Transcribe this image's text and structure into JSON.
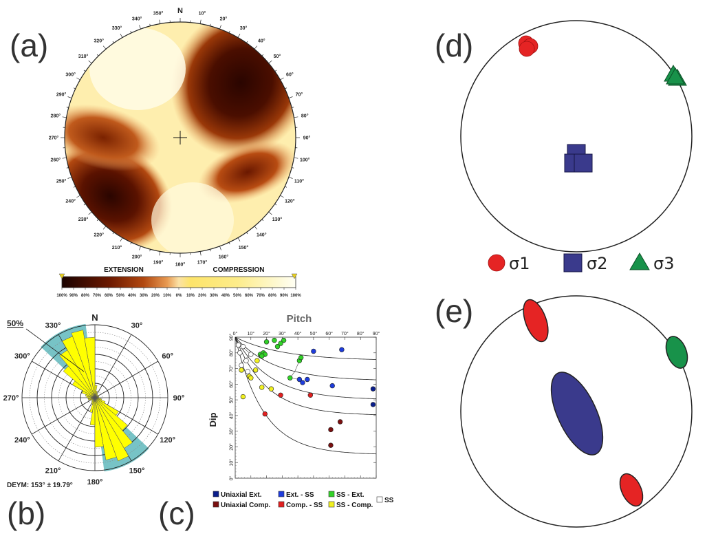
{
  "panel_labels": {
    "a": "(a)",
    "b": "(b)",
    "c": "(c)",
    "d": "(d)",
    "e": "(e)"
  },
  "panel_a": {
    "north": "N",
    "azimuth_labels": [
      "10°",
      "20°",
      "30°",
      "40°",
      "50°",
      "60°",
      "70°",
      "80°",
      "90°",
      "100°",
      "110°",
      "120°",
      "130°",
      "140°",
      "150°",
      "160°",
      "170°",
      "180°",
      "190°",
      "200°",
      "210°",
      "220°",
      "230°",
      "240°",
      "250°",
      "260°",
      "270°",
      "280°",
      "290°",
      "300°",
      "310°",
      "320°",
      "330°",
      "340°",
      "350°"
    ],
    "colorbar": {
      "left_label": "EXTENSION",
      "right_label": "COMPRESSION",
      "ticks": [
        "100%",
        "90%",
        "80%",
        "70%",
        "60%",
        "50%",
        "40%",
        "30%",
        "20%",
        "10%",
        "0%",
        "10%",
        "20%",
        "30%",
        "40%",
        "50%",
        "60%",
        "70%",
        "80%",
        "90%",
        "100%"
      ],
      "colors": [
        "#1a0200",
        "#3a0800",
        "#5a1200",
        "#7a2000",
        "#993200",
        "#b54a10",
        "#cc6a2a",
        "#e08c48",
        "#eeae6a",
        "#f6cd8c",
        "#fbe6ae",
        "#fde89a",
        "#fde46e",
        "#fde45a",
        "#fdea70",
        "#feee8a",
        "#fef2a4",
        "#fef6bc",
        "#fef9d0",
        "#fffce4",
        "#fffff4"
      ]
    }
  },
  "panel_b": {
    "north": "N",
    "azimuth_labels": [
      "30°",
      "60°",
      "90°",
      "120°",
      "150°",
      "180°",
      "210°",
      "240°",
      "270°",
      "300°",
      "330°"
    ],
    "scale_label": "50%",
    "summary": "DEYM: 153° ± 19.79°"
  },
  "panel_c": {
    "title": "Pitch",
    "ylabel": "Dip",
    "x_ticks": [
      "0°",
      "10°",
      "20°",
      "30°",
      "40°",
      "50°",
      "60°",
      "70°",
      "80°",
      "90°"
    ],
    "y_ticks": [
      "0°",
      "10°",
      "20°",
      "30°",
      "40°",
      "50°",
      "60°",
      "70°",
      "80°",
      "90°"
    ],
    "legend": [
      {
        "label": "Uniaxial Ext.",
        "color": "#0a1e8c"
      },
      {
        "label": "Ext. - SS",
        "color": "#1e3cdc"
      },
      {
        "label": "SS - Ext.",
        "color": "#32d228"
      },
      {
        "label": "SS",
        "color": "#ffffff"
      },
      {
        "label": "Uniaxial Comp.",
        "color": "#7a1010"
      },
      {
        "label": "Comp. - SS",
        "color": "#e02020"
      },
      {
        "label": "SS - Comp.",
        "color": "#f0f020"
      }
    ]
  },
  "panel_d": {
    "legend": [
      {
        "label": "σ1",
        "color": "#e52424"
      },
      {
        "label": "σ2",
        "color": "#3a3a8c"
      },
      {
        "label": "σ3",
        "color": "#18924a"
      }
    ]
  },
  "chart_data": {
    "type": "scatter",
    "title": "Pitch",
    "xlabel": "",
    "ylabel": "Dip",
    "xlim": [
      0,
      90
    ],
    "ylim": [
      0,
      90
    ],
    "series": [
      {
        "name": "Uniaxial Ext.",
        "color": "#0a1e8c",
        "points": [
          [
            88,
            57
          ],
          [
            88,
            47
          ]
        ]
      },
      {
        "name": "Ext. - SS",
        "color": "#1e3cdc",
        "points": [
          [
            50,
            81
          ],
          [
            68,
            82
          ],
          [
            41,
            63
          ],
          [
            43,
            61
          ],
          [
            46,
            63
          ],
          [
            62,
            59
          ]
        ]
      },
      {
        "name": "SS - Ext.",
        "color": "#32d228",
        "points": [
          [
            20,
            87
          ],
          [
            25,
            88
          ],
          [
            27,
            84
          ],
          [
            31,
            88
          ],
          [
            29,
            86
          ],
          [
            16,
            79
          ],
          [
            18,
            80
          ],
          [
            19,
            79
          ],
          [
            17,
            78
          ],
          [
            41,
            75
          ],
          [
            42,
            77
          ],
          [
            35,
            64
          ]
        ]
      },
      {
        "name": "SS",
        "color": "#ffffff",
        "points": [
          [
            2,
            85
          ],
          [
            5,
            84
          ],
          [
            3,
            80
          ],
          [
            10,
            79
          ],
          [
            7,
            75
          ],
          [
            4,
            72
          ],
          [
            8,
            68
          ]
        ]
      },
      {
        "name": "Uniaxial Comp.",
        "color": "#7a1010",
        "points": [
          [
            67,
            36
          ],
          [
            61,
            31
          ],
          [
            61,
            21
          ]
        ]
      },
      {
        "name": "Comp. - SS",
        "color": "#e02020",
        "points": [
          [
            29,
            53
          ],
          [
            48,
            53
          ],
          [
            19,
            41
          ]
        ]
      },
      {
        "name": "SS - Comp.",
        "color": "#f0f020",
        "points": [
          [
            14,
            75
          ],
          [
            4,
            69
          ],
          [
            9,
            65
          ],
          [
            13,
            69
          ],
          [
            10,
            64
          ],
          [
            17,
            58
          ],
          [
            23,
            57
          ],
          [
            5,
            52
          ]
        ]
      }
    ]
  }
}
